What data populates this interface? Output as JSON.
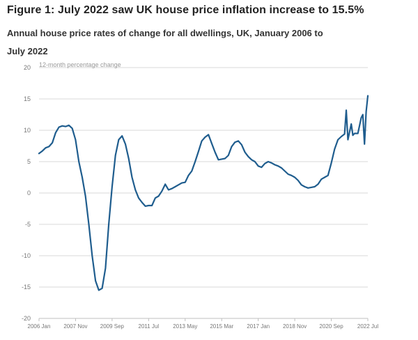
{
  "figure": {
    "title": "Figure 1: July 2022 saw UK house price inflation increase to 15.5%",
    "subtitle": "Annual house price rates of change for all dwellings, UK, January 2006 to July 2022"
  },
  "colors": {
    "line": "#1f5d8e",
    "grid": "#d9d9d9",
    "axis": "#bfbfbf"
  },
  "chart_data": {
    "type": "line",
    "title": "Figure 1: July 2022 saw UK house price inflation increase to 15.5%",
    "subtitle": "Annual house price rates of change for all dwellings, UK, January 2006 to July 2022",
    "ylabel": "12-month percentage change",
    "xlabel": "",
    "ylim": [
      -20,
      20
    ],
    "yticks": [
      -20,
      -15,
      -10,
      -5,
      0,
      5,
      10,
      15,
      20
    ],
    "xlim": [
      "2006-01",
      "2022-07"
    ],
    "xticks": [
      {
        "date": "2006-01",
        "label": "2006 Jan"
      },
      {
        "date": "2007-11",
        "label": "2007 Nov"
      },
      {
        "date": "2009-09",
        "label": "2009 Sep"
      },
      {
        "date": "2011-07",
        "label": "2011 Jul"
      },
      {
        "date": "2013-05",
        "label": "2013 May"
      },
      {
        "date": "2015-03",
        "label": "2015 Mar"
      },
      {
        "date": "2017-01",
        "label": "2017 Jan"
      },
      {
        "date": "2018-11",
        "label": "2018 Nov"
      },
      {
        "date": "2020-09",
        "label": "2020 Sep"
      },
      {
        "date": "2022-07",
        "label": "2022 Jul"
      }
    ],
    "grid": true,
    "legend": "none",
    "series": [
      {
        "points": [
          [
            "2006-01",
            6.3
          ],
          [
            "2006-03",
            6.7
          ],
          [
            "2006-05",
            7.2
          ],
          [
            "2006-07",
            7.4
          ],
          [
            "2006-09",
            8.0
          ],
          [
            "2006-11",
            9.6
          ],
          [
            "2007-01",
            10.5
          ],
          [
            "2007-03",
            10.7
          ],
          [
            "2007-05",
            10.6
          ],
          [
            "2007-07",
            10.8
          ],
          [
            "2007-09",
            10.3
          ],
          [
            "2007-11",
            8.5
          ],
          [
            "2008-01",
            5.0
          ],
          [
            "2008-03",
            2.5
          ],
          [
            "2008-05",
            -0.5
          ],
          [
            "2008-07",
            -5.0
          ],
          [
            "2008-09",
            -10.0
          ],
          [
            "2008-11",
            -14.0
          ],
          [
            "2009-01",
            -15.5
          ],
          [
            "2009-03",
            -15.2
          ],
          [
            "2009-05",
            -12.0
          ],
          [
            "2009-07",
            -5.0
          ],
          [
            "2009-09",
            1.0
          ],
          [
            "2009-11",
            6.0
          ],
          [
            "2010-01",
            8.5
          ],
          [
            "2010-03",
            9.1
          ],
          [
            "2010-05",
            7.8
          ],
          [
            "2010-07",
            5.5
          ],
          [
            "2010-09",
            2.5
          ],
          [
            "2010-11",
            0.5
          ],
          [
            "2011-01",
            -0.8
          ],
          [
            "2011-03",
            -1.5
          ],
          [
            "2011-05",
            -2.1
          ],
          [
            "2011-07",
            -2.0
          ],
          [
            "2011-09",
            -2.0
          ],
          [
            "2011-11",
            -0.8
          ],
          [
            "2012-01",
            -0.5
          ],
          [
            "2012-03",
            0.3
          ],
          [
            "2012-05",
            1.4
          ],
          [
            "2012-07",
            0.5
          ],
          [
            "2012-09",
            0.7
          ],
          [
            "2012-11",
            1.0
          ],
          [
            "2013-01",
            1.3
          ],
          [
            "2013-03",
            1.6
          ],
          [
            "2013-05",
            1.7
          ],
          [
            "2013-07",
            2.8
          ],
          [
            "2013-09",
            3.5
          ],
          [
            "2013-11",
            5.0
          ],
          [
            "2014-01",
            6.6
          ],
          [
            "2014-03",
            8.3
          ],
          [
            "2014-05",
            8.9
          ],
          [
            "2014-07",
            9.3
          ],
          [
            "2014-09",
            7.9
          ],
          [
            "2014-11",
            6.5
          ],
          [
            "2015-01",
            5.3
          ],
          [
            "2015-03",
            5.4
          ],
          [
            "2015-05",
            5.5
          ],
          [
            "2015-07",
            6.0
          ],
          [
            "2015-09",
            7.4
          ],
          [
            "2015-11",
            8.1
          ],
          [
            "2016-01",
            8.3
          ],
          [
            "2016-03",
            7.7
          ],
          [
            "2016-05",
            6.5
          ],
          [
            "2016-07",
            5.8
          ],
          [
            "2016-09",
            5.3
          ],
          [
            "2016-11",
            5.0
          ],
          [
            "2017-01",
            4.3
          ],
          [
            "2017-03",
            4.1
          ],
          [
            "2017-05",
            4.7
          ],
          [
            "2017-07",
            5.0
          ],
          [
            "2017-09",
            4.8
          ],
          [
            "2017-11",
            4.5
          ],
          [
            "2018-01",
            4.3
          ],
          [
            "2018-03",
            4.0
          ],
          [
            "2018-05",
            3.5
          ],
          [
            "2018-07",
            3.0
          ],
          [
            "2018-09",
            2.8
          ],
          [
            "2018-11",
            2.5
          ],
          [
            "2019-01",
            2.0
          ],
          [
            "2019-03",
            1.3
          ],
          [
            "2019-05",
            1.0
          ],
          [
            "2019-07",
            0.8
          ],
          [
            "2019-09",
            0.9
          ],
          [
            "2019-11",
            1.0
          ],
          [
            "2020-01",
            1.4
          ],
          [
            "2020-03",
            2.2
          ],
          [
            "2020-05",
            2.5
          ],
          [
            "2020-07",
            2.8
          ],
          [
            "2020-09",
            4.8
          ],
          [
            "2020-11",
            7.0
          ],
          [
            "2021-01",
            8.5
          ],
          [
            "2021-03",
            9.0
          ],
          [
            "2021-05",
            9.4
          ],
          [
            "2021-06",
            13.2
          ],
          [
            "2021-07",
            8.5
          ],
          [
            "2021-09",
            11.0
          ],
          [
            "2021-10",
            9.2
          ],
          [
            "2021-11",
            9.5
          ],
          [
            "2022-01",
            9.5
          ],
          [
            "2022-03",
            12.0
          ],
          [
            "2022-04",
            12.5
          ],
          [
            "2022-05",
            7.8
          ],
          [
            "2022-06",
            13.0
          ],
          [
            "2022-07",
            15.5
          ]
        ]
      }
    ]
  }
}
